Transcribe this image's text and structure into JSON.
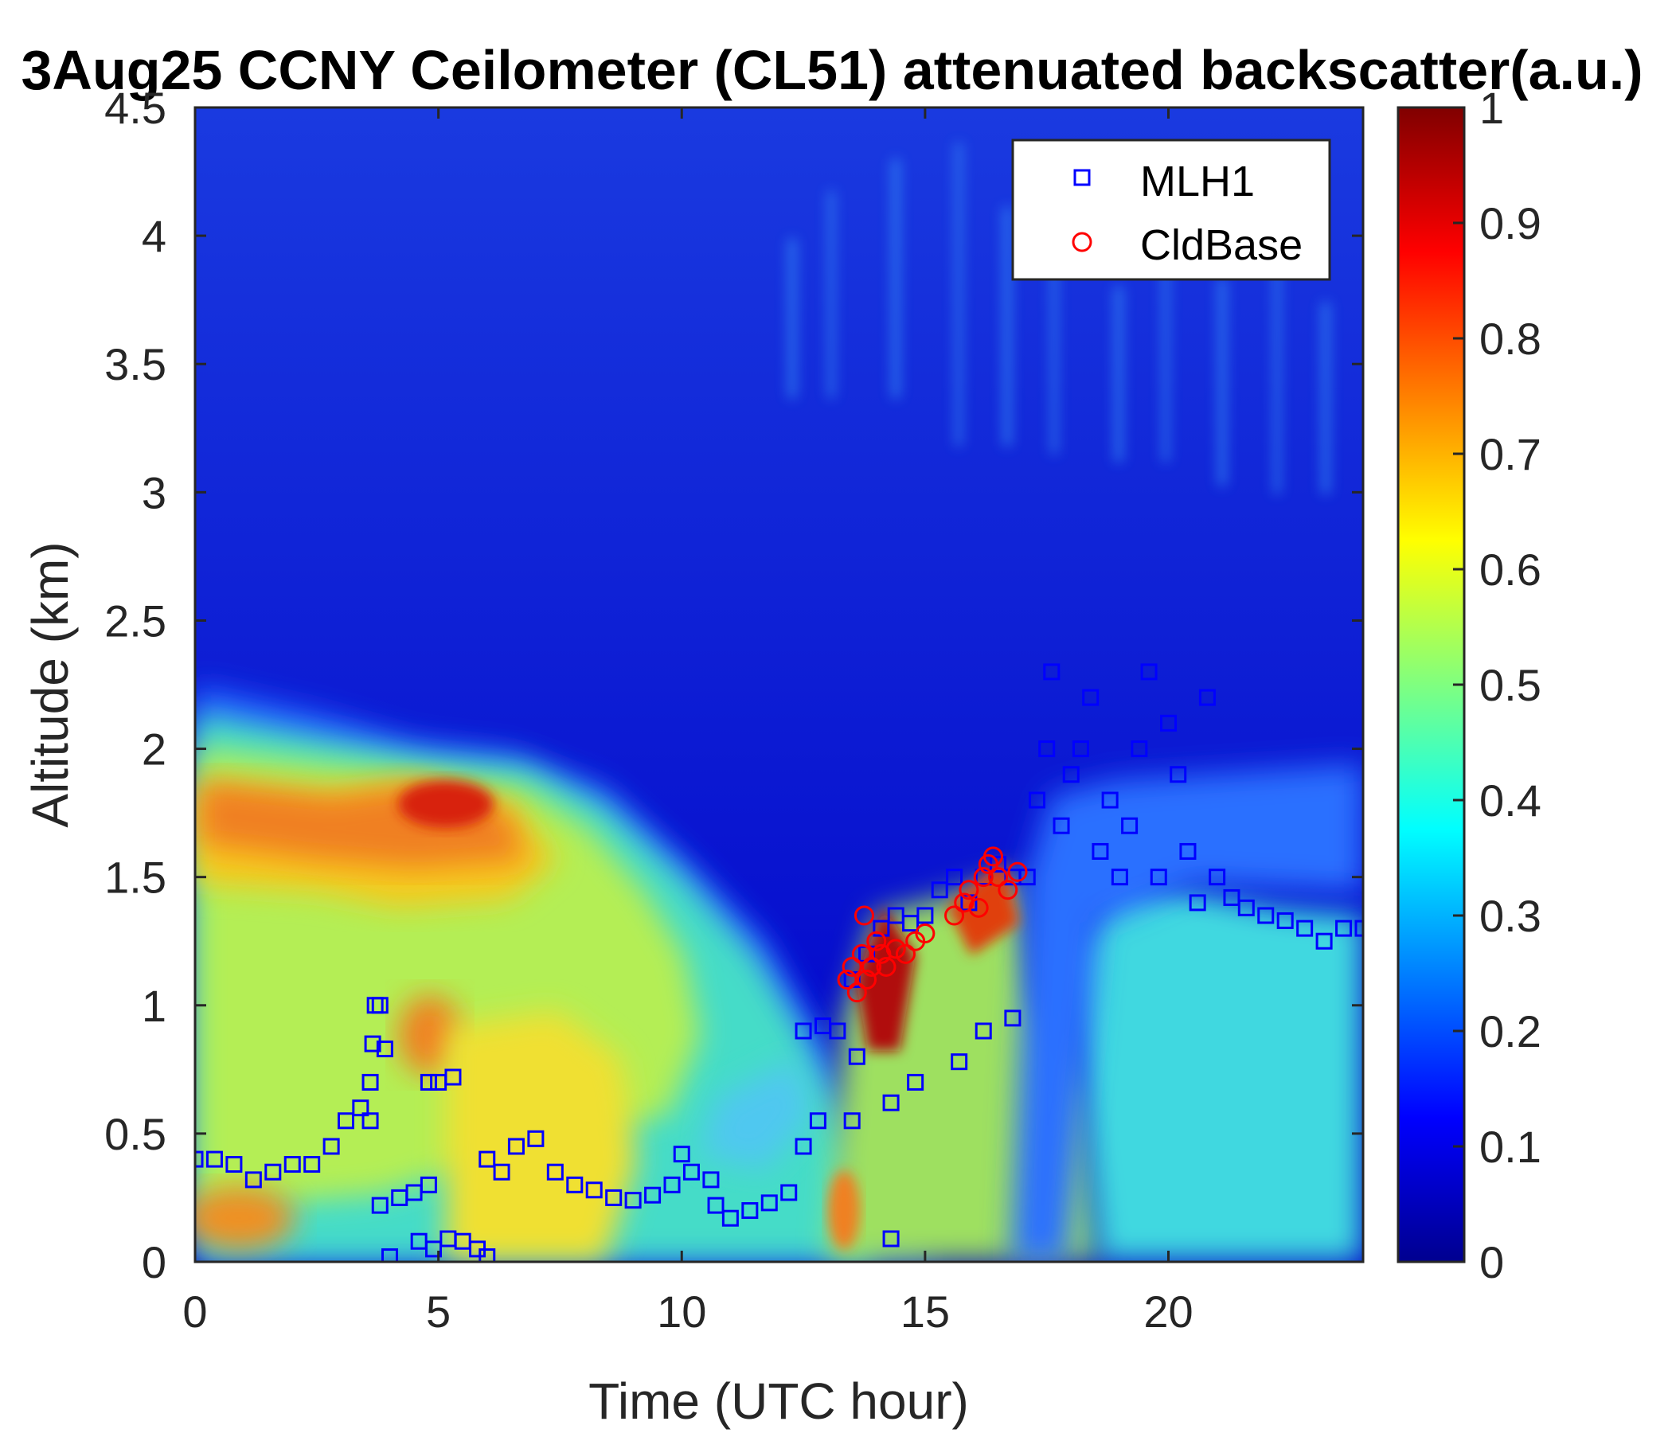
{
  "chart_data": {
    "type": "heatmap",
    "title": "3Aug25 CCNY Ceilometer (CL51) attenuated backscatter(a.u.)",
    "xlabel": "Time (UTC hour)",
    "ylabel": "Altitude (km)",
    "xlim": [
      0,
      24
    ],
    "ylim": [
      0,
      4.5
    ],
    "xticks": [
      "0",
      "5",
      "10",
      "15",
      "20"
    ],
    "yticks": [
      "0",
      "0.5",
      "1",
      "1.5",
      "2",
      "2.5",
      "3",
      "3.5",
      "4",
      "4.5"
    ],
    "colorbar": {
      "colormap": "jet",
      "range": [
        0,
        1
      ],
      "ticks": [
        "0",
        "0.1",
        "0.2",
        "0.3",
        "0.4",
        "0.5",
        "0.6",
        "0.7",
        "0.8",
        "0.9",
        "1"
      ]
    },
    "legend_position": "top-right",
    "series": [
      {
        "name": "MLH1",
        "marker": "square",
        "color": "#0000ff",
        "points": [
          [
            0.0,
            0.4
          ],
          [
            0.4,
            0.4
          ],
          [
            0.8,
            0.38
          ],
          [
            1.2,
            0.32
          ],
          [
            1.6,
            0.35
          ],
          [
            2.0,
            0.38
          ],
          [
            2.4,
            0.38
          ],
          [
            2.8,
            0.45
          ],
          [
            3.1,
            0.55
          ],
          [
            3.4,
            0.6
          ],
          [
            3.6,
            0.55
          ],
          [
            3.6,
            0.7
          ],
          [
            3.65,
            0.85
          ],
          [
            3.7,
            1.0
          ],
          [
            3.8,
            1.0
          ],
          [
            3.9,
            0.83
          ],
          [
            3.8,
            0.22
          ],
          [
            4.0,
            0.02
          ],
          [
            4.2,
            0.25
          ],
          [
            4.5,
            0.27
          ],
          [
            4.8,
            0.3
          ],
          [
            4.6,
            0.08
          ],
          [
            4.9,
            0.05
          ],
          [
            4.8,
            0.7
          ],
          [
            5.0,
            0.7
          ],
          [
            5.3,
            0.72
          ],
          [
            5.2,
            0.09
          ],
          [
            5.5,
            0.08
          ],
          [
            5.8,
            0.05
          ],
          [
            6.0,
            0.02
          ],
          [
            6.0,
            0.4
          ],
          [
            6.3,
            0.35
          ],
          [
            6.6,
            0.45
          ],
          [
            7.0,
            0.48
          ],
          [
            7.4,
            0.35
          ],
          [
            7.8,
            0.3
          ],
          [
            8.2,
            0.28
          ],
          [
            8.6,
            0.25
          ],
          [
            9.0,
            0.24
          ],
          [
            9.4,
            0.26
          ],
          [
            9.8,
            0.3
          ],
          [
            10.0,
            0.42
          ],
          [
            10.2,
            0.35
          ],
          [
            10.6,
            0.32
          ],
          [
            10.7,
            0.22
          ],
          [
            11.0,
            0.17
          ],
          [
            11.4,
            0.2
          ],
          [
            11.8,
            0.23
          ],
          [
            12.2,
            0.27
          ],
          [
            12.5,
            0.45
          ],
          [
            12.8,
            0.55
          ],
          [
            12.5,
            0.9
          ],
          [
            12.9,
            0.92
          ],
          [
            13.2,
            0.9
          ],
          [
            13.5,
            1.1
          ],
          [
            13.8,
            1.2
          ],
          [
            14.1,
            1.3
          ],
          [
            14.4,
            1.35
          ],
          [
            14.7,
            1.32
          ],
          [
            15.0,
            1.35
          ],
          [
            15.3,
            1.45
          ],
          [
            15.6,
            1.5
          ],
          [
            15.9,
            1.4
          ],
          [
            16.2,
            1.5
          ],
          [
            16.5,
            1.55
          ],
          [
            16.8,
            1.5
          ],
          [
            17.1,
            1.5
          ],
          [
            17.3,
            1.8
          ],
          [
            17.5,
            2.0
          ],
          [
            17.6,
            2.3
          ],
          [
            17.8,
            1.7
          ],
          [
            18.0,
            1.9
          ],
          [
            18.2,
            2.0
          ],
          [
            18.4,
            2.2
          ],
          [
            18.6,
            1.6
          ],
          [
            18.8,
            1.8
          ],
          [
            19.0,
            1.5
          ],
          [
            19.2,
            1.7
          ],
          [
            19.4,
            2.0
          ],
          [
            19.6,
            2.3
          ],
          [
            19.8,
            1.5
          ],
          [
            20.0,
            2.1
          ],
          [
            20.2,
            1.9
          ],
          [
            20.4,
            1.6
          ],
          [
            20.6,
            1.4
          ],
          [
            20.8,
            2.2
          ],
          [
            21.0,
            1.5
          ],
          [
            21.3,
            1.42
          ],
          [
            21.6,
            1.38
          ],
          [
            22.0,
            1.35
          ],
          [
            22.4,
            1.33
          ],
          [
            22.8,
            1.3
          ],
          [
            23.2,
            1.25
          ],
          [
            23.6,
            1.3
          ],
          [
            24.0,
            1.3
          ],
          [
            13.5,
            0.55
          ],
          [
            13.6,
            0.8
          ],
          [
            14.3,
            0.62
          ],
          [
            14.3,
            0.09
          ],
          [
            14.8,
            0.7
          ],
          [
            15.7,
            0.78
          ],
          [
            16.2,
            0.9
          ],
          [
            16.8,
            0.95
          ]
        ]
      },
      {
        "name": "CldBase",
        "marker": "circle",
        "color": "#ff0000",
        "points": [
          [
            13.4,
            1.1
          ],
          [
            13.5,
            1.15
          ],
          [
            13.6,
            1.05
          ],
          [
            13.7,
            1.2
          ],
          [
            13.75,
            1.35
          ],
          [
            13.8,
            1.1
          ],
          [
            13.9,
            1.15
          ],
          [
            14.0,
            1.25
          ],
          [
            14.1,
            1.2
          ],
          [
            14.2,
            1.15
          ],
          [
            14.4,
            1.22
          ],
          [
            14.6,
            1.2
          ],
          [
            14.8,
            1.25
          ],
          [
            15.0,
            1.28
          ],
          [
            15.6,
            1.35
          ],
          [
            15.8,
            1.4
          ],
          [
            15.9,
            1.45
          ],
          [
            16.1,
            1.38
          ],
          [
            16.2,
            1.5
          ],
          [
            16.3,
            1.55
          ],
          [
            16.4,
            1.58
          ],
          [
            16.5,
            1.5
          ],
          [
            16.7,
            1.45
          ],
          [
            16.9,
            1.52
          ]
        ]
      }
    ]
  }
}
